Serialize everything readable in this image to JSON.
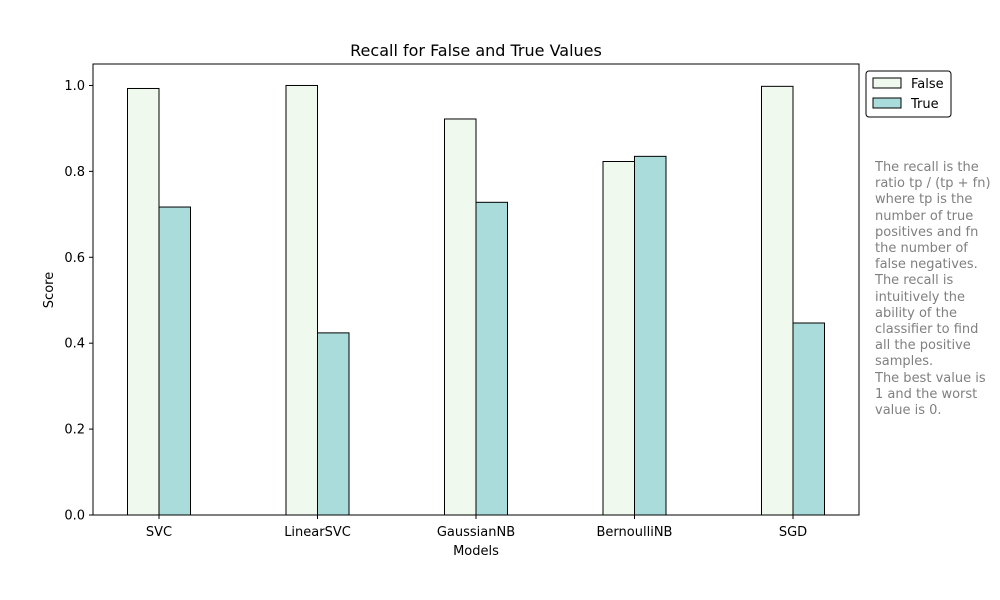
{
  "chart_data": {
    "type": "bar",
    "title": "Recall for False and True Values",
    "xlabel": "Models",
    "ylabel": "Score",
    "categories": [
      "SVC",
      "LinearSVC",
      "GaussianNB",
      "BernoulliNB",
      "SGD"
    ],
    "series": [
      {
        "name": "False",
        "values": [
          0.993,
          1.0,
          0.922,
          0.823,
          0.998
        ],
        "color": "#f0f9ee"
      },
      {
        "name": "True",
        "values": [
          0.717,
          0.424,
          0.728,
          0.835,
          0.447
        ],
        "color": "#aadcdc"
      }
    ],
    "ylim": [
      0,
      1.05
    ],
    "yticks": [
      0.0,
      0.2,
      0.4,
      0.6,
      0.8,
      1.0
    ],
    "ytick_labels": [
      "0.0",
      "0.2",
      "0.4",
      "0.6",
      "0.8",
      "1.0"
    ],
    "legend_position": "outside top-right",
    "grid": false
  },
  "note": "The recall is the\nratio tp / (tp + fn)\nwhere tp is the\nnumber of true\npositives and fn\nthe number of\nfalse negatives.\nThe recall is\nintuitively the\nability of the\nclassifier to find\nall the positive\nsamples.\nThe best value is\n1 and the worst\nvalue is 0."
}
